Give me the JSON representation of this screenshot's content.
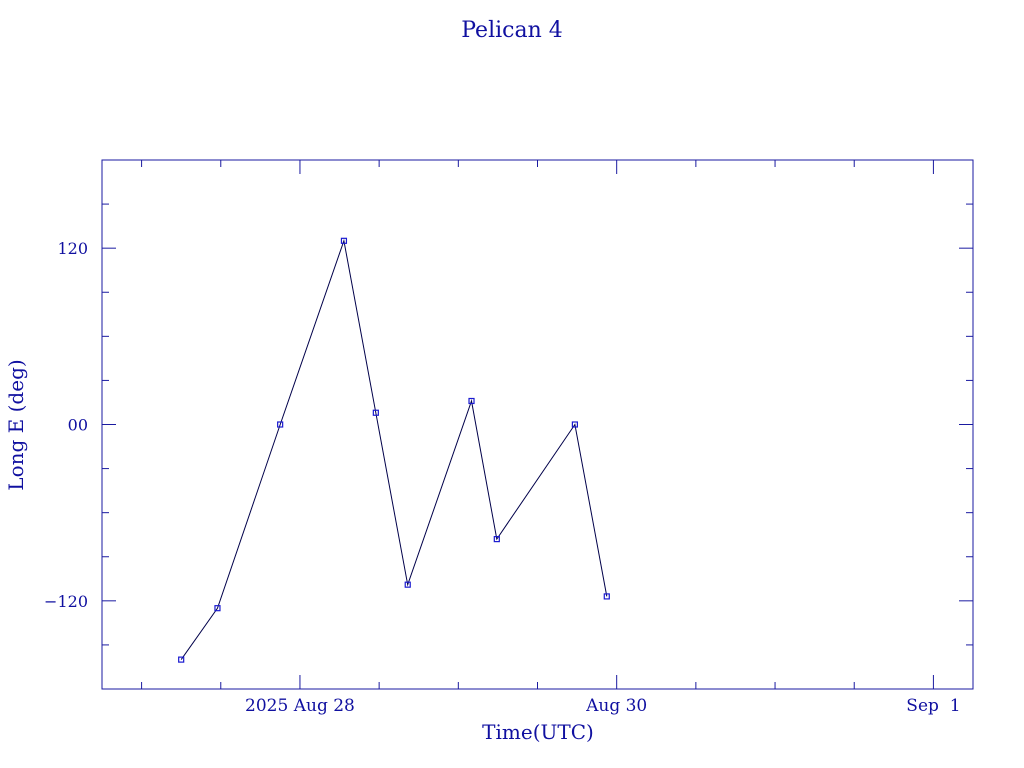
{
  "chart_data": {
    "type": "line",
    "title": "Pelican 4",
    "xlabel": "Time(UTC)",
    "ylabel": "Long E (deg)",
    "colors": {
      "axes": "#1a1aa0",
      "line": "#00004a",
      "marker": "#1a1ad0"
    },
    "xlim": [
      "2025-08-26T18:00",
      "2025-09-01T06:00"
    ],
    "ylim": [
      -180,
      180
    ],
    "x_ticks": [
      {
        "value": "2025-08-28T00:00",
        "label": "2025 Aug 28"
      },
      {
        "value": "2025-08-30T00:00",
        "label": "Aug 30"
      },
      {
        "value": "2025-09-01T00:00",
        "label": "Sep  1"
      }
    ],
    "y_ticks": [
      {
        "value": 120,
        "label": "120"
      },
      {
        "value": 0,
        "label": "00"
      },
      {
        "value": -120,
        "label": "−120"
      }
    ],
    "x": [
      "2025-08-27T06:00",
      "2025-08-27T11:30",
      "2025-08-27T21:00",
      "2025-08-28T06:40",
      "2025-08-28T11:30",
      "2025-08-28T16:20",
      "2025-08-29T02:00",
      "2025-08-29T05:50",
      "2025-08-29T17:40",
      "2025-08-29T22:30"
    ],
    "y": [
      -160,
      -125,
      0,
      125,
      8,
      -109,
      16,
      -78,
      0,
      -117
    ],
    "grid": false,
    "legend": "none"
  }
}
